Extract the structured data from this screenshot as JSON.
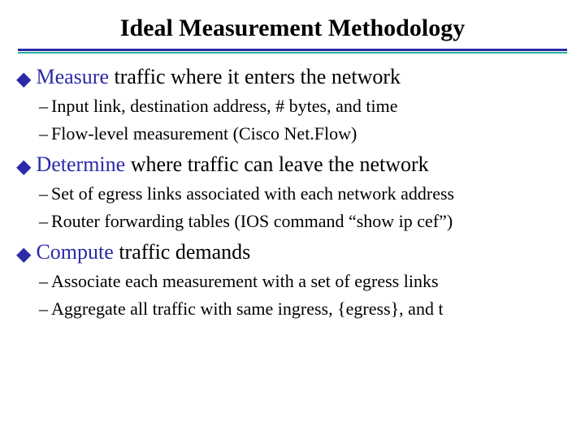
{
  "title": "Ideal Measurement Methodology",
  "colors": {
    "accent": "#2b2ba8",
    "rule_secondary": "#29b09a",
    "text": "#000000",
    "background": "#ffffff"
  },
  "fonts": {
    "family": "Times New Roman",
    "title_size": 30,
    "main_size": 26,
    "sub_size": 22
  },
  "items": [
    {
      "lead": "Measure",
      "rest": " traffic where it enters the network",
      "subs": [
        "Input link, destination address, # bytes, and time",
        "Flow-level measurement (Cisco Net.Flow)"
      ]
    },
    {
      "lead": "Determine",
      "rest": " where traffic can leave the network",
      "subs": [
        "Set of egress links associated with each network address",
        "Router forwarding tables (IOS command “show ip cef”)"
      ]
    },
    {
      "lead": "Compute",
      "rest": " traffic demands",
      "subs": [
        "Associate each measurement with a set of egress links",
        "Aggregate all traffic with same ingress, {egress}, and t"
      ]
    }
  ]
}
